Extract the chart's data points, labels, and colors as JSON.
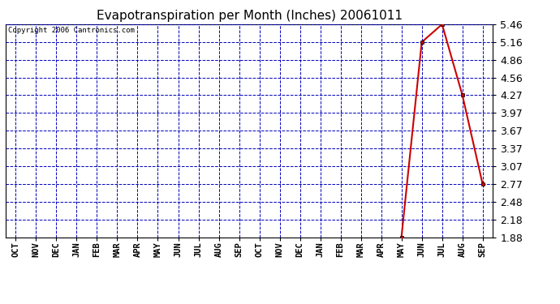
{
  "title": "Evapotranspiration per Month (Inches) 20061011",
  "copyright": "Copyright 2006 Cantronics.com",
  "x_labels": [
    "OCT",
    "NOV",
    "DEC",
    "JAN",
    "FEB",
    "MAR",
    "APR",
    "MAY",
    "JUN",
    "JUL",
    "AUG",
    "SEP",
    "OCT",
    "NOV",
    "DEC",
    "JAN",
    "FEB",
    "MAR",
    "APR",
    "MAY",
    "JUN",
    "JUL",
    "AUG",
    "SEP"
  ],
  "y_ticks": [
    1.88,
    2.18,
    2.48,
    2.77,
    3.07,
    3.37,
    3.67,
    3.97,
    4.27,
    4.56,
    4.86,
    5.16,
    5.46
  ],
  "ylim": [
    1.88,
    5.46
  ],
  "data_x_indices": [
    19,
    20,
    21,
    22,
    23
  ],
  "data_y": [
    1.88,
    5.16,
    5.46,
    4.27,
    2.77
  ],
  "line_color": "#cc0000",
  "marker": "s",
  "marker_size": 3,
  "grid_color": "#0000bb",
  "bg_color": "#ffffff",
  "plot_bg_color": "#ffffff",
  "title_fontsize": 11,
  "tick_fontsize": 7.5,
  "ytick_fontsize": 9,
  "copyright_fontsize": 6.5
}
